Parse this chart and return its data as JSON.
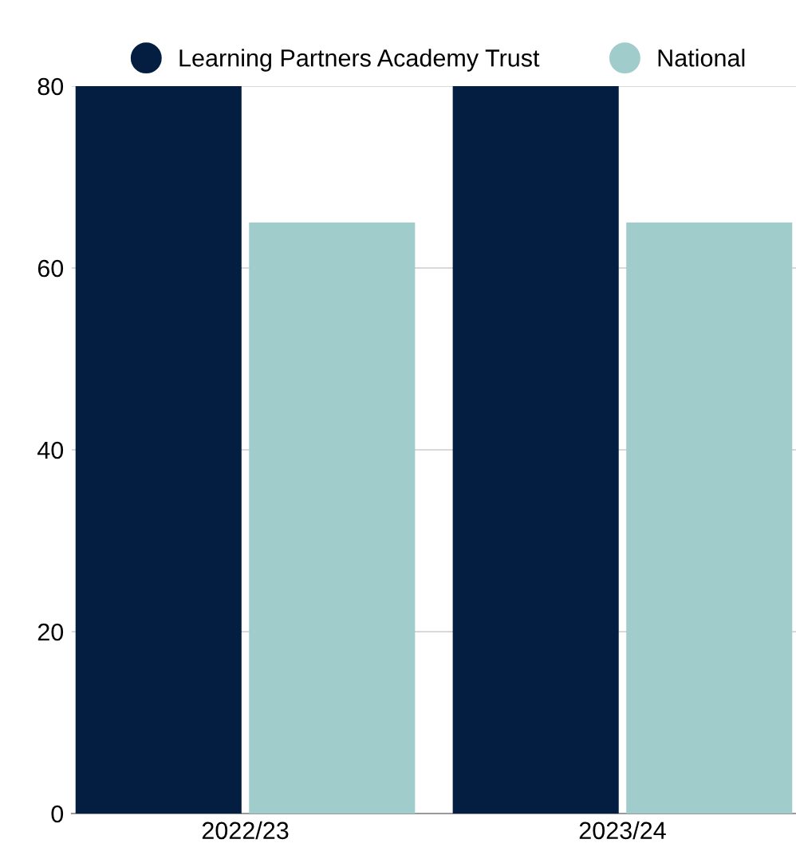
{
  "chart_data": {
    "type": "bar",
    "categories": [
      "2022/23",
      "2023/24"
    ],
    "series": [
      {
        "name": "Learning Partners Academy Trust",
        "color": "#041e42",
        "values": [
          80,
          80
        ]
      },
      {
        "name": "National",
        "color": "#a0cccc",
        "values": [
          65,
          65
        ]
      }
    ],
    "ylim": [
      0,
      80
    ],
    "yticks": [
      0,
      20,
      40,
      60,
      80
    ],
    "grid": "y",
    "legend": "top"
  }
}
